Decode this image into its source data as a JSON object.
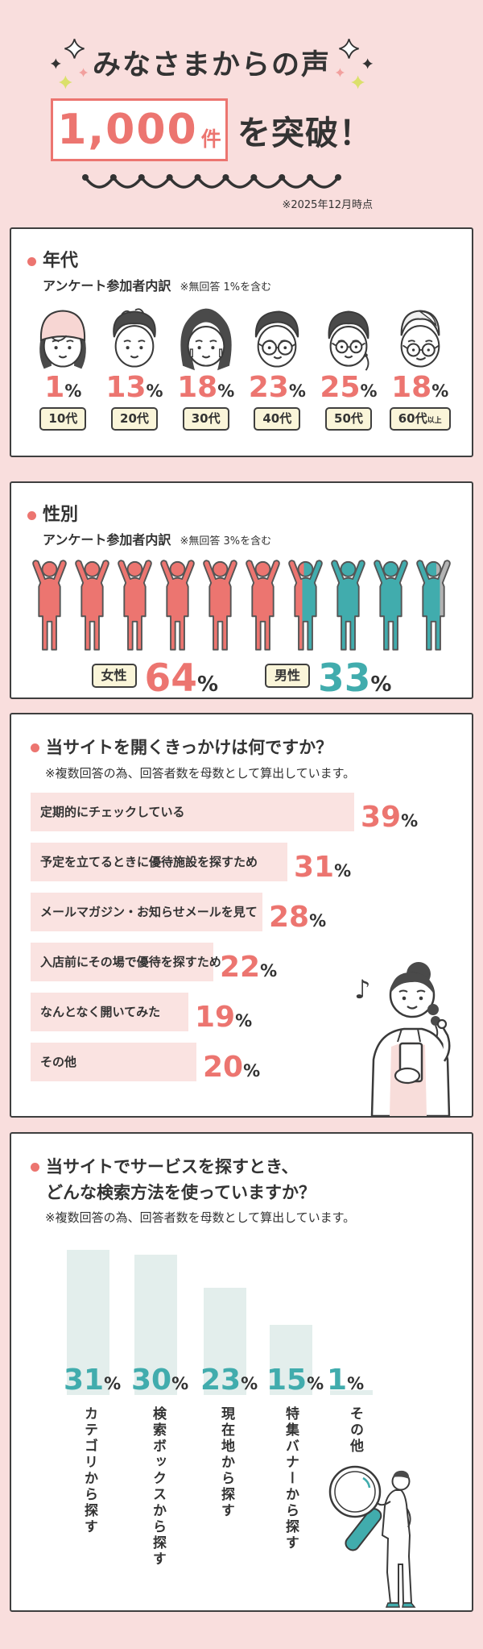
{
  "percent_sign": "%",
  "header": {
    "title": "みなさまからの声",
    "count_value": "1,000",
    "count_unit": "件",
    "count_suffix": "を突破！",
    "date_note": "※2025年12月時点"
  },
  "age_section": {
    "title": "年代",
    "subtitle": "アンケート参加者内訳",
    "note": "※無回答 1%を含む",
    "items": [
      {
        "percent": 1,
        "label": "10代",
        "suffix": "",
        "icon": "teen-girl-face-icon"
      },
      {
        "percent": 13,
        "label": "20代",
        "suffix": "",
        "icon": "young-man-face-icon"
      },
      {
        "percent": 18,
        "label": "30代",
        "suffix": "",
        "icon": "woman-long-hair-face-icon"
      },
      {
        "percent": 23,
        "label": "40代",
        "suffix": "",
        "icon": "man-glasses-face-icon"
      },
      {
        "percent": 25,
        "label": "50代",
        "suffix": "",
        "icon": "woman-glasses-face-icon"
      },
      {
        "percent": 18,
        "label": "60代",
        "suffix": "以上",
        "icon": "senior-man-face-icon"
      }
    ]
  },
  "gender_section": {
    "title": "性別",
    "subtitle": "アンケート参加者内訳",
    "note": "※無回答 3%を含む",
    "female_label": "女性",
    "female_percent": 64,
    "male_label": "男性",
    "male_percent": 33,
    "unanswered_percent": 3,
    "figure_count": 10
  },
  "trigger_section": {
    "title": "当サイトを開くきっかけは何ですか？",
    "note": "※複数回答の為、回答者数を母数として算出しています。",
    "bars": [
      {
        "label": "定期的にチェックしている",
        "percent": 39
      },
      {
        "label": "予定を立てるときに優待施設を探すため",
        "percent": 31
      },
      {
        "label": "メールマガジン・お知らせメールを見て",
        "percent": 28
      },
      {
        "label": "入店前にその場で優待を探すため",
        "percent": 22
      },
      {
        "label": "なんとなく開いてみた",
        "percent": 19
      },
      {
        "label": "その他",
        "percent": 20
      }
    ],
    "illustration": "woman-with-phone-illustration"
  },
  "search_section": {
    "title_line1": "当サイトでサービスを探すとき、",
    "title_line2": "どんな検索方法を使っていますか？",
    "note": "※複数回答の為、回答者数を母数として算出しています。",
    "bars": [
      {
        "label": "カテゴリから探す",
        "percent": 31
      },
      {
        "label": "検索ボックスから探す",
        "percent": 30
      },
      {
        "label": "現在地から探す",
        "percent": 23
      },
      {
        "label": "特集バナーから探す",
        "percent": 15
      },
      {
        "label": "その他",
        "percent": 1
      }
    ],
    "illustration": "man-with-magnifier-illustration"
  },
  "colors": {
    "background": "#f9dedd",
    "accent_red": "#ec7570",
    "teal": "#41acad",
    "gray_unanswered": "#b3b3b3",
    "card_border": "#3f3f3f",
    "text_dark": "#333333",
    "cream_label_bg": "#faf5d9",
    "pink_bar": "#fae3e1",
    "mint_bar": "#e3eeec",
    "sparkle_pink": "#f2a09e",
    "sparkle_yellow": "#dbe06b"
  },
  "chart_data": [
    {
      "type": "bar",
      "title": "年代 アンケート参加者内訳",
      "note": "※無回答 1%を含む",
      "categories": [
        "10代",
        "20代",
        "30代",
        "40代",
        "50代",
        "60代以上"
      ],
      "values": [
        1,
        13,
        18,
        23,
        25,
        18
      ],
      "unit": "%"
    },
    {
      "type": "pie",
      "title": "性別 アンケート参加者内訳",
      "note": "※無回答 3%を含む",
      "categories": [
        "女性",
        "男性",
        "無回答"
      ],
      "values": [
        64,
        33,
        3
      ],
      "unit": "%"
    },
    {
      "type": "bar",
      "orientation": "horizontal",
      "title": "当サイトを開くきっかけは何ですか？",
      "note": "※複数回答の為、回答者数を母数として算出しています。",
      "categories": [
        "定期的にチェックしている",
        "予定を立てるときに優待施設を探すため",
        "メールマガジン・お知らせメールを見て",
        "入店前にその場で優待を探すため",
        "なんとなく開いてみた",
        "その他"
      ],
      "values": [
        39,
        31,
        28,
        22,
        19,
        20
      ],
      "unit": "%"
    },
    {
      "type": "bar",
      "orientation": "vertical",
      "title": "当サイトでサービスを探すとき、どんな検索方法を使っていますか？",
      "note": "※複数回答の為、回答者数を母数として算出しています。",
      "categories": [
        "カテゴリから探す",
        "検索ボックスから探す",
        "現在地から探す",
        "特集バナーから探す",
        "その他"
      ],
      "values": [
        31,
        30,
        23,
        15,
        1
      ],
      "unit": "%"
    }
  ]
}
